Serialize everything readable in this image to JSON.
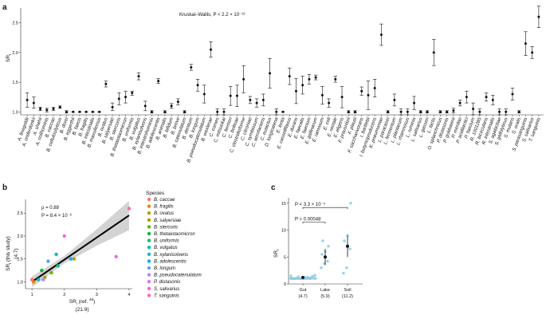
{
  "panel_labels": {
    "a": "a",
    "b": "b",
    "c": "c"
  },
  "chart_data": [
    {
      "type": "scatter",
      "panel": "a",
      "title": "",
      "annotation": "Kruskal–Wallis, P < 2.2 × 10⁻¹⁶",
      "ylabel": "SR",
      "ylabel_sub": "i",
      "ylim": [
        0.95,
        2.75
      ],
      "yticks": [
        "1.0",
        "1.5",
        "2.0",
        "2.5"
      ],
      "categories": [
        "A. finegoldii",
        "A. onderdonkii",
        "A. shahii",
        "A. colihominis",
        "B. caccae",
        "B. cellulosilyticus",
        "B. dorei",
        "B. eggerthii",
        "B. faecis",
        "B. fragilis",
        "B. intestinalis",
        "B. massiliensis",
        "B. ovatus",
        "B. salyersiae",
        "B. stercoris",
        "B. thetaiotaomicron",
        "B. uniformis",
        "B. vulgatus",
        "B. xylanisolvens",
        "B. intestinihominis",
        "B. adolescentis",
        "B. animalis",
        "B. bifidum",
        "B. breve",
        "B. catenulatum",
        "B. dentium",
        "B. longum",
        "B. pseudocatenulatum",
        "B. wexlerae",
        "C. comes",
        "C. mitsuokai",
        "C. fermeri",
        "C. bolteae",
        "C. clostridioforme",
        "C. citroniae",
        "C. symbiosum",
        "C. aerofaciens",
        "C. eutactus",
        "D. longicatena",
        "E. lenta",
        "E. cassellflavus",
        "E. durans",
        "E. faecalis",
        "E. faecium",
        "E. gallinarum",
        "E. ramosum",
        "E. coli",
        "E. rectale",
        "E. eligens",
        "F. prausnitzii",
        "F. plautii",
        "F. saccharivorans",
        "I. bartlettii",
        "I. butyriciproducens",
        "K. pneumoniae",
        "L. paracasei",
        "L. fermentum",
        "L. plantarum",
        "L. rhamnosus",
        "L. ruminis",
        "L. salivarius",
        "L. gasseri",
        "L. lactis",
        "O. splanchnicus",
        "P. distasonis",
        "P. goldsteinii",
        "P. merdae",
        "P. acidilactici",
        "P. faecium",
        "R. 1001285",
        "R. bicirculans",
        "R. intestinalis",
        "S. agalactiae",
        "S. gallolyticus",
        "S. mutans",
        "S. oralis",
        "S. parasanguinis",
        "S. salivarius",
        "T. sanguinis"
      ],
      "series": [
        {
          "name": "mean",
          "values": [
            1.2,
            1.15,
            1.05,
            1.03,
            1.05,
            1.08,
            1.0,
            1.0,
            1.0,
            1.0,
            1.0,
            1.0,
            1.47,
            1.08,
            1.22,
            1.25,
            1.32,
            1.6,
            1.1,
            1.0,
            1.52,
            1.0,
            1.1,
            1.17,
            1.0,
            1.75,
            1.45,
            1.3,
            2.05,
            1.0,
            1.0,
            1.27,
            1.27,
            1.55,
            1.2,
            1.15,
            1.2,
            1.65,
            1.0,
            1.0,
            1.6,
            1.35,
            1.45,
            1.55,
            1.58,
            1.28,
            1.15,
            1.55,
            1.25,
            1.0,
            1.0,
            1.35,
            1.28,
            1.4,
            2.3,
            1.0,
            1.2,
            1.0,
            1.0,
            1.15,
            1.0,
            1.0,
            2.0,
            1.0,
            1.0,
            1.02,
            1.15,
            1.25,
            1.05,
            1.0,
            1.25,
            1.2,
            1.0,
            1.0,
            1.3,
            1.0,
            2.15,
            2.0,
            2.6
          ]
        },
        {
          "name": "upper",
          "values": [
            1.32,
            1.25,
            1.08,
            1.06,
            1.08,
            1.1,
            1.02,
            1.0,
            1.0,
            1.0,
            1.0,
            1.0,
            1.52,
            1.15,
            1.32,
            1.35,
            1.35,
            1.66,
            1.18,
            1.02,
            1.56,
            1.02,
            1.14,
            1.22,
            1.02,
            1.8,
            1.55,
            1.45,
            2.18,
            1.05,
            1.05,
            1.43,
            1.45,
            1.78,
            1.26,
            1.22,
            1.3,
            1.9,
            1.05,
            1.0,
            1.74,
            1.56,
            1.6,
            1.63,
            1.62,
            1.43,
            1.22,
            1.6,
            1.43,
            1.02,
            1.02,
            1.42,
            1.52,
            1.55,
            2.48,
            1.02,
            1.3,
            1.05,
            1.05,
            1.26,
            1.02,
            1.02,
            2.22,
            1.02,
            1.02,
            1.06,
            1.2,
            1.35,
            1.15,
            1.05,
            1.32,
            1.28,
            1.05,
            1.05,
            1.4,
            1.02,
            2.35,
            2.1,
            2.78
          ]
        },
        {
          "name": "lower",
          "values": [
            1.08,
            1.06,
            1.02,
            1.0,
            1.02,
            1.06,
            0.98,
            1.0,
            1.0,
            1.0,
            1.0,
            1.0,
            1.42,
            1.02,
            1.12,
            1.15,
            1.28,
            1.54,
            1.02,
            0.98,
            1.48,
            0.98,
            1.06,
            1.12,
            0.98,
            1.7,
            1.35,
            1.15,
            1.92,
            0.95,
            0.95,
            1.11,
            1.09,
            1.32,
            1.14,
            1.08,
            1.1,
            1.4,
            0.95,
            1.0,
            1.46,
            1.14,
            1.3,
            1.47,
            1.54,
            1.13,
            1.08,
            1.5,
            1.07,
            0.98,
            0.98,
            1.28,
            1.04,
            1.25,
            2.12,
            0.98,
            1.1,
            0.95,
            0.95,
            1.04,
            0.98,
            0.98,
            1.78,
            0.98,
            0.98,
            0.98,
            1.1,
            1.15,
            0.95,
            0.95,
            1.18,
            1.12,
            0.95,
            0.95,
            1.2,
            0.98,
            1.95,
            1.9,
            2.42
          ]
        }
      ]
    },
    {
      "type": "scatter",
      "panel": "b",
      "xlabel": "SR",
      "xlabel_sub": "i",
      "xlabel_ref": " (ref. ",
      "xlabel_refnum": "48",
      "xlabel_paren": ")",
      "xlabel_note": "(21.9)",
      "ylabel": "SR",
      "ylabel_sub": "i",
      "ylabel_rest": " (this study)",
      "ylabel_note": "(4.7)",
      "xlim": [
        0.8,
        4.1
      ],
      "ylim": [
        0.85,
        2.8
      ],
      "xticks": [
        "1",
        "2",
        "3",
        "4"
      ],
      "yticks": [
        "1.0",
        "1.5",
        "2.0",
        "2.5"
      ],
      "rho_text": "ρ = 0.88",
      "p_text": "P = 8.4 × 10⁻⁶",
      "fit": {
        "x": [
          1.0,
          4.0
        ],
        "y": [
          1.0,
          2.45
        ]
      },
      "legend_title": "Species",
      "points": [
        {
          "name": "B. caccae",
          "x": 1.0,
          "y": 1.05,
          "color": "#f8766d"
        },
        {
          "name": "B. fragilis",
          "x": 1.05,
          "y": 1.0,
          "color": "#e58700"
        },
        {
          "name": "B. ovatus",
          "x": 2.3,
          "y": 1.5,
          "color": "#c99800"
        },
        {
          "name": "B. salyersiae",
          "x": 1.4,
          "y": 1.1,
          "color": "#a3a500"
        },
        {
          "name": "B. stercoris",
          "x": 1.6,
          "y": 1.2,
          "color": "#6bb100"
        },
        {
          "name": "B. thetaiotaomicron",
          "x": 1.3,
          "y": 1.25,
          "color": "#00ba38"
        },
        {
          "name": "B. uniformis",
          "x": 1.8,
          "y": 1.35,
          "color": "#00bf7d"
        },
        {
          "name": "B. vulgatus",
          "x": 1.75,
          "y": 1.6,
          "color": "#00c0af"
        },
        {
          "name": "B. xylanisolvens",
          "x": 1.2,
          "y": 1.05,
          "color": "#00bcd8"
        },
        {
          "name": "B. adolescentis",
          "x": 2.2,
          "y": 1.5,
          "color": "#00b0f6"
        },
        {
          "name": "B. longum",
          "x": 1.5,
          "y": 1.45,
          "color": "#619cff"
        },
        {
          "name": "B. pseudocatenulatum",
          "x": 1.35,
          "y": 1.05,
          "color": "#b983ff"
        },
        {
          "name": "P. distasonis",
          "x": 3.6,
          "y": 1.55,
          "color": "#e76bf3"
        },
        {
          "name": "S. salivarius",
          "x": 2.0,
          "y": 2.0,
          "color": "#fd61d1"
        },
        {
          "name": "T. sanguinis",
          "x": 4.0,
          "y": 2.6,
          "color": "#ff67a4"
        }
      ]
    },
    {
      "type": "scatter",
      "panel": "c",
      "ylabel": "SR",
      "ylabel_sub": "i",
      "ylim": [
        0,
        16
      ],
      "yticks": [
        "0",
        "5",
        "10",
        "15"
      ],
      "categories": [
        "Gut",
        "Lake",
        "Soil"
      ],
      "category_notes": [
        "(4.7)",
        "(5.9)",
        "(11.2)"
      ],
      "means": [
        1.2,
        5.0,
        7.0
      ],
      "upper": [
        1.4,
        6.5,
        9.0
      ],
      "lower": [
        1.0,
        3.5,
        5.0
      ],
      "points": {
        "Gut": [
          1.0,
          1.0,
          1.0,
          1.0,
          1.0,
          1.1,
          1.0,
          1.2,
          1.0,
          1.3,
          1.0,
          1.5,
          1.0,
          1.1,
          1.0,
          1.0,
          1.4,
          1.0,
          1.0,
          1.6,
          1.0,
          1.2,
          1.0,
          1.0,
          1.0
        ],
        "Lake": [
          3.0,
          3.8,
          4.2,
          5.5,
          6.0,
          7.0,
          8.0
        ],
        "Soil": [
          2.0,
          3.0,
          6.5,
          8.0,
          9.0,
          15.0
        ]
      },
      "brackets": [
        {
          "from": "Gut",
          "to": "Lake",
          "label": "P = 0.00048"
        },
        {
          "from": "Gut",
          "to": "Soil",
          "label": "P < 3.3 × 10⁻⁵"
        }
      ]
    }
  ]
}
